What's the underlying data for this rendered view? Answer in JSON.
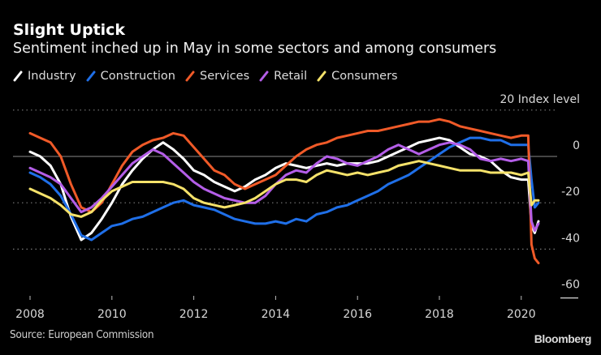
{
  "header": {
    "title": "Slight Uptick",
    "subtitle": "Sentiment inched up in May in some sectors and among consumers"
  },
  "footer": {
    "source": "Source: European Commission",
    "brand": "Bloomberg"
  },
  "chart_data": {
    "type": "line",
    "title": "Slight Uptick",
    "subtitle": "Sentiment inched up in May in some sectors and among consumers",
    "xlabel": "",
    "ylabel": "Index level",
    "y_unit_label": "20 Index level",
    "ylim": [
      -60,
      20
    ],
    "xlim": [
      2007.9,
      2021.2
    ],
    "y_ticks": [
      20,
      0,
      -20,
      -40,
      -60
    ],
    "y_tick_labels": [
      "20 Index level",
      "0",
      "-20",
      "-40",
      "-60"
    ],
    "x_ticks": [
      2008,
      2010,
      2012,
      2014,
      2016,
      2018,
      2020
    ],
    "x_tick_labels": [
      "2008",
      "2010",
      "2012",
      "2014",
      "2016",
      "2018",
      "2020"
    ],
    "grid": "horizontal dotted, solid zero line",
    "legend": "top-left",
    "x": [
      2008.0,
      2008.25,
      2008.5,
      2008.75,
      2009.0,
      2009.25,
      2009.5,
      2009.75,
      2010.0,
      2010.25,
      2010.5,
      2010.75,
      2011.0,
      2011.25,
      2011.5,
      2011.75,
      2012.0,
      2012.25,
      2012.5,
      2012.75,
      2013.0,
      2013.25,
      2013.5,
      2013.75,
      2014.0,
      2014.25,
      2014.5,
      2014.75,
      2015.0,
      2015.25,
      2015.5,
      2015.75,
      2016.0,
      2016.25,
      2016.5,
      2016.75,
      2017.0,
      2017.25,
      2017.5,
      2017.75,
      2018.0,
      2018.25,
      2018.5,
      2018.75,
      2019.0,
      2019.25,
      2019.5,
      2019.75,
      2020.0,
      2020.17,
      2020.25,
      2020.33,
      2020.42
    ],
    "series": [
      {
        "name": "Industry",
        "color": "#ffffff",
        "values": [
          2,
          0,
          -4,
          -12,
          -26,
          -36,
          -33,
          -27,
          -20,
          -12,
          -6,
          -1,
          3,
          6,
          3,
          -1,
          -6,
          -8,
          -11,
          -13,
          -15,
          -13,
          -10,
          -8,
          -5,
          -3,
          -4,
          -5,
          -4,
          -3,
          -4,
          -3,
          -3,
          -3,
          -2,
          0,
          2,
          4,
          6,
          7,
          8,
          7,
          4,
          1,
          0,
          -2,
          -6,
          -9,
          -10,
          -10,
          -30,
          -33,
          -28
        ]
      },
      {
        "name": "Construction",
        "color": "#1f6fe8",
        "values": [
          -7,
          -9,
          -12,
          -17,
          -25,
          -34,
          -36,
          -33,
          -30,
          -29,
          -27,
          -26,
          -24,
          -22,
          -20,
          -19,
          -21,
          -22,
          -23,
          -25,
          -27,
          -28,
          -29,
          -29,
          -28,
          -29,
          -27,
          -28,
          -25,
          -24,
          -22,
          -21,
          -19,
          -17,
          -15,
          -12,
          -10,
          -8,
          -5,
          -2,
          1,
          4,
          6,
          8,
          8,
          7,
          7,
          5,
          5,
          5,
          -10,
          -22,
          -20
        ]
      },
      {
        "name": "Services",
        "color": "#f05a28",
        "values": [
          10,
          8,
          6,
          0,
          -12,
          -22,
          -24,
          -20,
          -12,
          -4,
          2,
          5,
          7,
          8,
          10,
          9,
          4,
          -1,
          -6,
          -8,
          -12,
          -14,
          -12,
          -10,
          -8,
          -4,
          0,
          3,
          5,
          6,
          8,
          9,
          10,
          11,
          11,
          12,
          13,
          14,
          15,
          15,
          16,
          15,
          13,
          12,
          11,
          10,
          9,
          8,
          9,
          9,
          -38,
          -44,
          -46
        ]
      },
      {
        "name": "Retail",
        "color": "#b45ee8",
        "values": [
          -5,
          -7,
          -9,
          -12,
          -18,
          -24,
          -22,
          -18,
          -13,
          -8,
          -3,
          0,
          3,
          1,
          -3,
          -7,
          -11,
          -14,
          -16,
          -18,
          -19,
          -20,
          -20,
          -17,
          -12,
          -8,
          -6,
          -7,
          -3,
          0,
          -1,
          -3,
          -4,
          -2,
          0,
          3,
          5,
          3,
          1,
          3,
          5,
          6,
          5,
          3,
          -1,
          -2,
          -1,
          -2,
          -1,
          -2,
          -28,
          -32,
          -29
        ]
      },
      {
        "name": "Consumers",
        "color": "#f5e26a",
        "values": [
          -14,
          -16,
          -18,
          -21,
          -25,
          -26,
          -24,
          -19,
          -15,
          -13,
          -11,
          -11,
          -11,
          -11,
          -12,
          -14,
          -18,
          -20,
          -21,
          -22,
          -21,
          -20,
          -18,
          -15,
          -12,
          -10,
          -10,
          -11,
          -8,
          -6,
          -7,
          -8,
          -7,
          -8,
          -7,
          -6,
          -4,
          -3,
          -2,
          -3,
          -4,
          -5,
          -6,
          -6,
          -6,
          -7,
          -7,
          -7,
          -8,
          -7,
          -21,
          -19,
          -19
        ]
      }
    ]
  }
}
